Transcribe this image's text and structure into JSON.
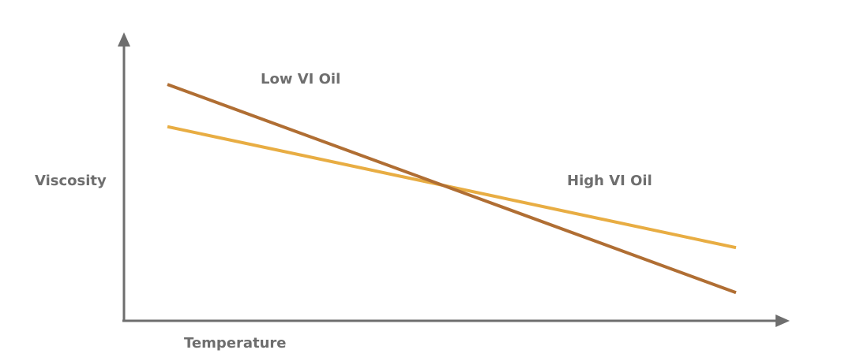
{
  "chart_data": {
    "type": "line",
    "title": "",
    "xlabel": "Temperature",
    "ylabel": "Viscosity",
    "grid": false,
    "legend": "inline labels",
    "axis_color": "#6e6e6e",
    "series": [
      {
        "name": "Low VI Oil",
        "color": "#b06e33",
        "x": [
          0,
          1
        ],
        "y": [
          0.84,
          0.1
        ]
      },
      {
        "name": "High VI Oil",
        "color": "#e8ad43",
        "x": [
          0,
          1
        ],
        "y": [
          0.69,
          0.26
        ]
      }
    ]
  }
}
